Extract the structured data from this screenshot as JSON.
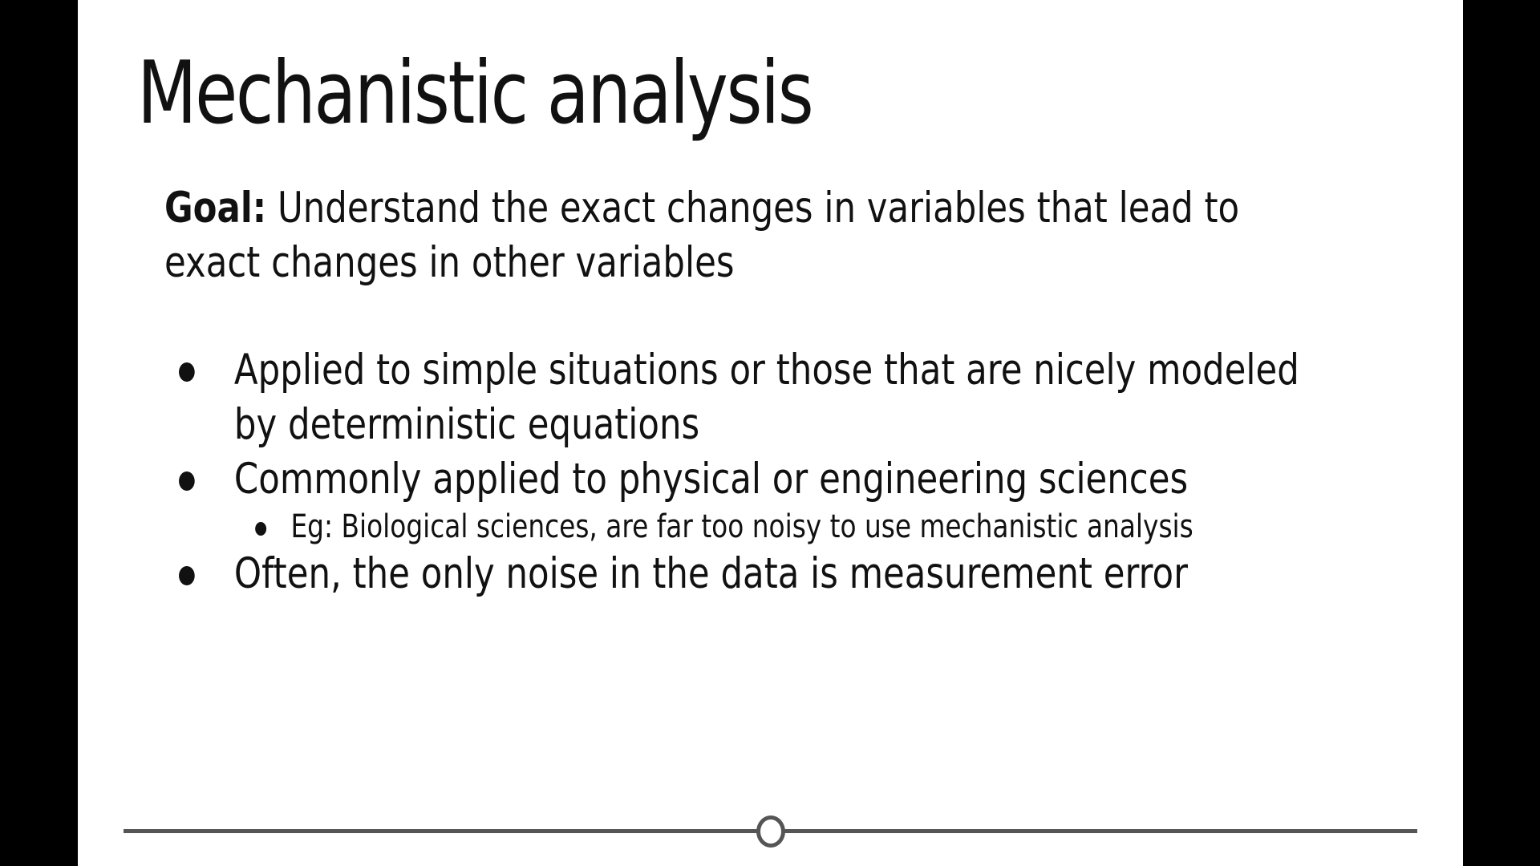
{
  "slide": {
    "title": "Mechanistic analysis",
    "goal": {
      "label": "Goal:",
      "text": " Understand the exact changes in variables that lead to exact changes in other variables"
    },
    "bullets": [
      {
        "text": "Applied to simple situations or those that are nicely modeled by deterministic equations"
      },
      {
        "text": "Commonly applied to physical or engineering sciences",
        "sub": [
          "Eg: Biological sciences, are far too noisy to use mechanistic analysis"
        ]
      },
      {
        "text": "Often,  the only noise in the data is measurement error"
      }
    ]
  },
  "player": {
    "progress_fraction": 0.5
  },
  "colors": {
    "background": "#000000",
    "slide": "#ffffff",
    "text": "#111111",
    "progress": "#555555"
  }
}
